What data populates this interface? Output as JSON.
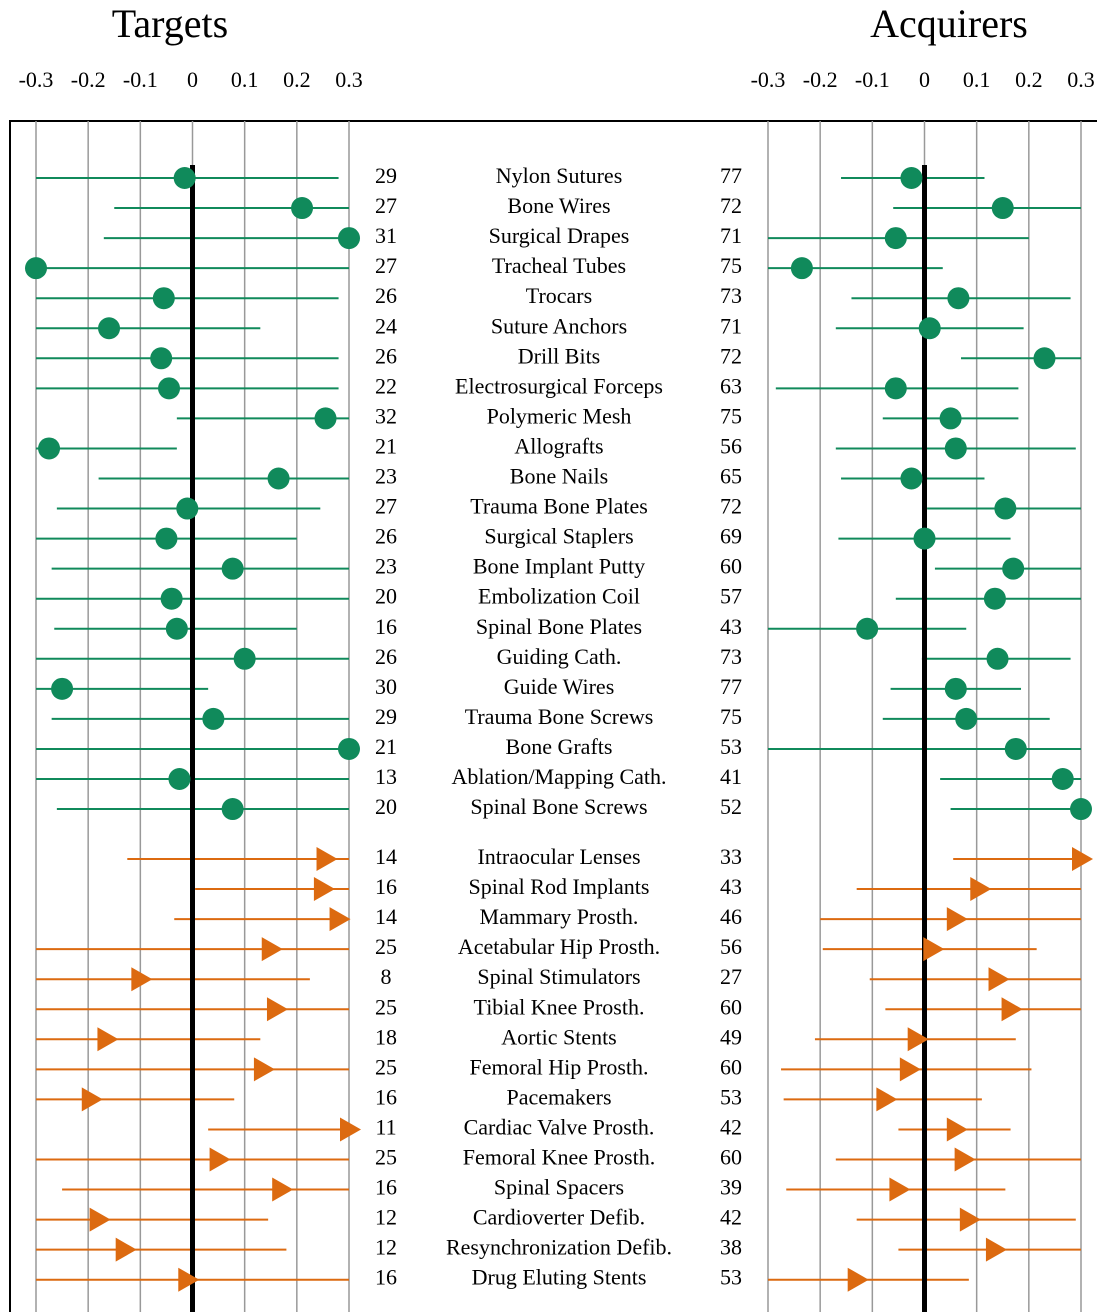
{
  "chart_data": {
    "type": "forest",
    "groups": [
      {
        "color": "#108a5b",
        "marker": "circle",
        "categories": [
          "Nylon Sutures",
          "Bone Wires",
          "Surgical Drapes",
          "Tracheal Tubes",
          "Trocars",
          "Suture Anchors",
          "Drill Bits",
          "Electrosurgical Forceps",
          "Polymeric Mesh",
          "Allografts",
          "Bone Nails",
          "Trauma Bone Plates",
          "Surgical Staplers",
          "Bone Implant Putty",
          "Embolization Coil",
          "Spinal Bone Plates",
          "Guiding Cath.",
          "Guide Wires",
          "Trauma Bone Screws",
          "Bone Grafts",
          "Ablation/Mapping Cath.",
          "Spinal Bone Screws"
        ]
      },
      {
        "color": "#dc6a10",
        "marker": "triangle",
        "categories": [
          "Intraocular Lenses",
          "Spinal Rod Implants",
          "Mammary Prosth.",
          "Acetabular Hip Prosth.",
          "Spinal Stimulators",
          "Tibial Knee Prosth.",
          "Aortic Stents",
          "Femoral Hip Prosth.",
          "Pacemakers",
          "Cardiac Valve Prosth.",
          "Femoral Knee Prosth.",
          "Spinal Spacers",
          "Cardioverter Defib.",
          "Resynchronization Defib.",
          "Drug Eluting Stents"
        ]
      }
    ],
    "panels": [
      {
        "title": "Targets",
        "xlim": [
          -0.3,
          0.3
        ],
        "xticks": [
          -0.3,
          -0.2,
          -0.1,
          0,
          0.1,
          0.2,
          0.3
        ],
        "groups": [
          {
            "n": [
              29,
              27,
              31,
              27,
              26,
              24,
              26,
              22,
              32,
              21,
              23,
              27,
              26,
              23,
              20,
              16,
              26,
              30,
              29,
              21,
              13,
              20
            ],
            "values": [
              -0.015,
              0.21,
              0.3,
              -0.3,
              -0.055,
              -0.16,
              -0.06,
              -0.045,
              0.255,
              -0.275,
              0.165,
              -0.01,
              -0.05,
              0.077,
              -0.04,
              -0.03,
              0.1,
              -0.25,
              0.04,
              0.3,
              -0.025,
              0.077
            ],
            "low": [
              -0.3,
              -0.15,
              -0.17,
              -0.3,
              -0.3,
              -0.3,
              -0.3,
              -0.3,
              -0.03,
              -0.3,
              -0.18,
              -0.26,
              -0.3,
              -0.27,
              -0.3,
              -0.265,
              -0.3,
              -0.3,
              -0.27,
              -0.3,
              -0.3,
              -0.26
            ],
            "high": [
              0.28,
              0.3,
              0.3,
              0.3,
              0.28,
              0.13,
              0.28,
              0.28,
              0.3,
              -0.03,
              0.3,
              0.245,
              0.2,
              0.3,
              0.3,
              0.2,
              0.3,
              0.03,
              0.3,
              0.3,
              0.3,
              0.3
            ]
          },
          {
            "n": [
              14,
              16,
              14,
              25,
              8,
              25,
              18,
              25,
              16,
              11,
              25,
              16,
              12,
              12,
              16
            ],
            "values": [
              0.255,
              0.25,
              0.28,
              0.15,
              -0.1,
              0.16,
              -0.165,
              0.135,
              -0.195,
              0.3,
              0.05,
              0.17,
              -0.18,
              -0.13,
              -0.01
            ],
            "low": [
              -0.125,
              0.005,
              -0.035,
              -0.3,
              -0.3,
              -0.3,
              -0.3,
              -0.3,
              -0.3,
              0.03,
              -0.3,
              -0.25,
              -0.3,
              -0.3,
              -0.3
            ],
            "high": [
              0.3,
              0.3,
              0.3,
              0.3,
              0.225,
              0.3,
              0.13,
              0.3,
              0.08,
              0.3,
              0.3,
              0.3,
              0.145,
              0.18,
              0.3
            ]
          }
        ]
      },
      {
        "title": "Acquirers",
        "xlim": [
          -0.3,
          0.3
        ],
        "xticks": [
          -0.3,
          -0.2,
          -0.1,
          0,
          0.1,
          0.2,
          0.3
        ],
        "groups": [
          {
            "n": [
              77,
              72,
              71,
              75,
              73,
              71,
              72,
              63,
              75,
              56,
              65,
              72,
              69,
              60,
              57,
              43,
              73,
              77,
              75,
              53,
              41,
              52
            ],
            "values": [
              -0.025,
              0.15,
              -0.055,
              -0.235,
              0.065,
              0.01,
              0.23,
              -0.055,
              0.05,
              0.06,
              -0.025,
              0.155,
              0,
              0.17,
              0.135,
              -0.11,
              0.14,
              0.06,
              0.08,
              0.175,
              0.265,
              0.3
            ],
            "low": [
              -0.16,
              -0.06,
              -0.3,
              -0.3,
              -0.14,
              -0.17,
              0.07,
              -0.285,
              -0.08,
              -0.17,
              -0.16,
              0.005,
              -0.165,
              0.02,
              -0.055,
              -0.3,
              -0.005,
              -0.065,
              -0.08,
              -0.3,
              0.03,
              0.05
            ],
            "high": [
              0.115,
              0.3,
              0.2,
              0.035,
              0.28,
              0.19,
              0.3,
              0.18,
              0.18,
              0.29,
              0.115,
              0.3,
              0.165,
              0.3,
              0.3,
              0.08,
              0.28,
              0.185,
              0.24,
              0.3,
              0.3,
              0.3
            ]
          },
          {
            "n": [
              33,
              43,
              46,
              56,
              27,
              60,
              49,
              60,
              53,
              42,
              60,
              39,
              42,
              38,
              53
            ],
            "values": [
              0.3,
              0.105,
              0.06,
              0.015,
              0.14,
              0.165,
              -0.015,
              -0.03,
              -0.075,
              0.06,
              0.075,
              -0.05,
              0.085,
              0.135,
              -0.13
            ],
            "low": [
              0.055,
              -0.13,
              -0.2,
              -0.195,
              -0.105,
              -0.075,
              -0.21,
              -0.275,
              -0.27,
              -0.05,
              -0.17,
              -0.265,
              -0.13,
              -0.05,
              -0.3
            ],
            "high": [
              0.3,
              0.3,
              0.3,
              0.215,
              0.3,
              0.3,
              0.175,
              0.205,
              0.11,
              0.165,
              0.3,
              0.155,
              0.29,
              0.3,
              0.085
            ]
          }
        ]
      }
    ]
  }
}
